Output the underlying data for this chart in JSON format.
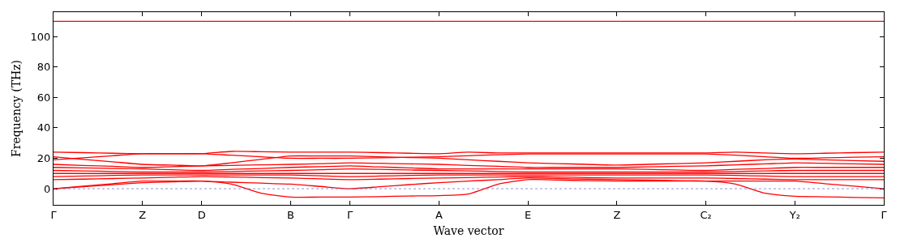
{
  "chart_data": {
    "type": "line",
    "xlabel": "Wave vector",
    "ylabel": "Frequency (THz)",
    "categories": [
      "Γ",
      null,
      null,
      "Z",
      null,
      "D",
      null,
      null,
      "B",
      null,
      "Γ",
      null,
      null,
      "A",
      null,
      null,
      "E",
      null,
      null,
      "Z",
      null,
      null,
      "C₂",
      null,
      null,
      "Y₂",
      null,
      null,
      "Γ"
    ],
    "ylim": [
      -10.6,
      116
    ],
    "yticks": [
      0,
      20,
      40,
      60,
      80,
      100
    ],
    "grid": false,
    "marker": "none",
    "line_style": "solid",
    "ref_lines": [
      {
        "axis": "y",
        "value": 0,
        "color": "#7777cc",
        "line_style": "dotted"
      }
    ],
    "series": [
      {
        "color": "#ff0000",
        "values": [
          110,
          110,
          110,
          110,
          110,
          110,
          110,
          110,
          110,
          110,
          110,
          110,
          110,
          110,
          110,
          110,
          110,
          110,
          110,
          110,
          110,
          110,
          110,
          110,
          110,
          110,
          110,
          110,
          110
        ]
      },
      {
        "color": "#ff0000",
        "values": [
          24,
          23.7,
          23.3,
          23,
          23,
          23,
          24.5,
          24.3,
          24,
          24,
          24,
          23.7,
          23.3,
          23,
          24,
          23.5,
          23.5,
          23.5,
          23.5,
          23.5,
          23.5,
          23.5,
          23.5,
          24,
          23.5,
          23,
          23.3,
          23.7,
          24
        ]
      },
      {
        "color": "#ff0000",
        "values": [
          19,
          20.3,
          21.7,
          23,
          23,
          23,
          22,
          21,
          20,
          20,
          20,
          20.3,
          20.7,
          21,
          21.7,
          22.3,
          22.8,
          22.8,
          22.8,
          22.8,
          22.8,
          22.8,
          22.8,
          22,
          21,
          20,
          20.3,
          20.7,
          21
        ]
      },
      {
        "color": "#ff0000",
        "values": [
          21,
          19.3,
          17.7,
          16,
          15.5,
          15,
          17,
          19.3,
          21.5,
          21.5,
          21.5,
          21,
          20.5,
          20,
          19,
          18,
          17,
          16.5,
          16,
          15.5,
          16,
          16.5,
          17,
          18,
          19,
          19.5,
          19,
          18.5,
          18
        ]
      },
      {
        "color": "#ff0000",
        "values": [
          16,
          15.3,
          14.7,
          14,
          14.5,
          15,
          15.3,
          15.7,
          16,
          16.5,
          17,
          16.7,
          16.3,
          16,
          15.3,
          14.7,
          14,
          14,
          14,
          14,
          14.3,
          14.7,
          15,
          15.7,
          16.3,
          17,
          16.7,
          16.3,
          16
        ]
      },
      {
        "color": "#ff0000",
        "values": [
          14,
          13.7,
          13.3,
          13,
          12.5,
          12,
          12.7,
          13.3,
          14,
          14.5,
          15,
          14.3,
          13.7,
          13,
          13,
          13,
          13,
          13,
          13,
          13,
          12.7,
          12.3,
          12,
          12.7,
          13.3,
          14,
          14,
          14,
          14
        ]
      },
      {
        "color": "#ff0000",
        "values": [
          12,
          11.7,
          11.3,
          11,
          11,
          11,
          11.3,
          11.7,
          12,
          12.5,
          13,
          12.7,
          12.3,
          12,
          11.7,
          11.3,
          11,
          11,
          11,
          11,
          11,
          11,
          11,
          11.3,
          11.7,
          12,
          12,
          12,
          12
        ]
      },
      {
        "color": "#ff0000",
        "values": [
          10,
          10,
          10,
          10,
          10,
          10,
          10,
          10,
          10,
          10,
          10,
          10,
          10,
          10,
          10,
          10,
          10,
          10,
          10,
          10,
          10,
          10,
          10,
          10,
          10,
          10,
          10,
          10,
          10
        ]
      },
      {
        "color": "#ff0000",
        "values": [
          8,
          8.3,
          8.7,
          9,
          9,
          9,
          9,
          9,
          9,
          8.5,
          8,
          8.3,
          8.7,
          9,
          9,
          9,
          9,
          9,
          9,
          9,
          9,
          9,
          9,
          8.7,
          8.3,
          8,
          8,
          8,
          8
        ]
      },
      {
        "color": "#ff0000",
        "values": [
          6,
          6.3,
          6.7,
          7,
          7.5,
          8,
          7.7,
          7.3,
          7,
          6.5,
          6,
          6.3,
          6.7,
          7,
          7.3,
          7.7,
          8,
          7.7,
          7.3,
          7,
          7,
          7,
          7,
          6.7,
          6.3,
          6,
          6,
          6,
          6
        ]
      },
      {
        "color": "#ff0000",
        "values": [
          0,
          1.3,
          2.7,
          4,
          4.5,
          5,
          4.3,
          3.7,
          3,
          1.5,
          0,
          1.3,
          2.7,
          4,
          5,
          6,
          7,
          6.7,
          6.3,
          6,
          5.7,
          5.3,
          5,
          5,
          5,
          5,
          3.3,
          1.7,
          0
        ]
      },
      {
        "color": "#ff0000",
        "values": [
          0,
          1.7,
          3.3,
          5,
          5,
          5,
          3,
          -3,
          -5.5,
          -5.5,
          -5.5,
          -5.2,
          -4.8,
          -4.5,
          -3.5,
          3,
          6,
          5.7,
          5.3,
          5,
          5,
          5,
          5,
          3,
          -3,
          -5,
          -5.3,
          -5.7,
          -6
        ]
      }
    ]
  }
}
